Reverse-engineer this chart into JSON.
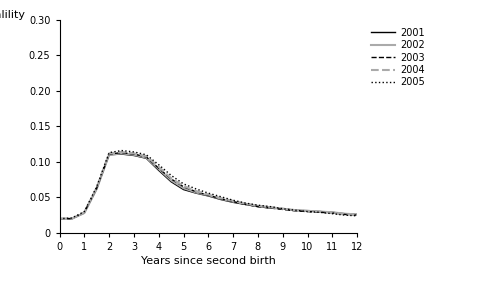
{
  "title": "",
  "xlabel": "Years since second birth",
  "xlim": [
    0,
    12
  ],
  "ylim": [
    0,
    0.3
  ],
  "yticks": [
    0,
    0.05,
    0.1,
    0.15,
    0.2,
    0.25,
    0.3
  ],
  "xticks": [
    0,
    1,
    2,
    3,
    4,
    5,
    6,
    7,
    8,
    9,
    10,
    11,
    12
  ],
  "series": [
    {
      "label": "2001",
      "color": "#000000",
      "linestyle": "solid",
      "linewidth": 1.0,
      "x": [
        0,
        0.5,
        1.0,
        1.5,
        2.0,
        2.5,
        3.0,
        3.5,
        4.0,
        4.5,
        5.0,
        5.5,
        6.0,
        6.5,
        7.0,
        7.5,
        8.0,
        8.5,
        9.0,
        9.5,
        10.0,
        10.5,
        11.0,
        11.5,
        12.0
      ],
      "y": [
        0.02,
        0.02,
        0.028,
        0.062,
        0.11,
        0.111,
        0.109,
        0.105,
        0.088,
        0.072,
        0.061,
        0.056,
        0.052,
        0.047,
        0.043,
        0.04,
        0.037,
        0.035,
        0.034,
        0.032,
        0.031,
        0.03,
        0.029,
        0.027,
        0.026
      ]
    },
    {
      "label": "2002",
      "color": "#aaaaaa",
      "linestyle": "solid",
      "linewidth": 1.5,
      "x": [
        0,
        0.5,
        1.0,
        1.5,
        2.0,
        2.5,
        3.0,
        3.5,
        4.0,
        4.5,
        5.0,
        5.5,
        6.0,
        6.5,
        7.0,
        7.5,
        8.0,
        8.5,
        9.0,
        9.5,
        10.0,
        10.5,
        11.0,
        11.5,
        12.0
      ],
      "y": [
        0.02,
        0.02,
        0.028,
        0.062,
        0.11,
        0.112,
        0.11,
        0.106,
        0.09,
        0.074,
        0.063,
        0.057,
        0.053,
        0.048,
        0.044,
        0.041,
        0.038,
        0.036,
        0.034,
        0.032,
        0.031,
        0.03,
        0.029,
        0.027,
        0.026
      ]
    },
    {
      "label": "2003",
      "color": "#000000",
      "linestyle": "dashed",
      "linewidth": 1.0,
      "x": [
        0,
        0.5,
        1.0,
        1.5,
        2.0,
        2.5,
        3.0,
        3.5,
        4.0,
        4.5,
        5.0,
        5.5,
        6.0,
        6.5,
        7.0,
        7.5,
        8.0,
        8.5,
        9.0,
        9.5,
        10.0,
        10.5,
        11.0,
        11.5,
        12.0
      ],
      "y": [
        0.02,
        0.02,
        0.029,
        0.063,
        0.111,
        0.113,
        0.111,
        0.107,
        0.091,
        0.076,
        0.065,
        0.058,
        0.053,
        0.048,
        0.044,
        0.04,
        0.037,
        0.035,
        0.033,
        0.031,
        0.03,
        0.029,
        0.028,
        0.026,
        0.025
      ]
    },
    {
      "label": "2004",
      "color": "#aaaaaa",
      "linestyle": "dashed",
      "linewidth": 1.5,
      "x": [
        0,
        0.5,
        1.0,
        1.5,
        2.0,
        2.5,
        3.0,
        3.5,
        4.0,
        4.5,
        5.0,
        5.5,
        6.0,
        6.5,
        7.0,
        7.5,
        8.0,
        8.5,
        9.0,
        9.5,
        10.0,
        10.5,
        11.0,
        11.5,
        12.0
      ],
      "y": [
        0.02,
        0.02,
        0.029,
        0.064,
        0.112,
        0.114,
        0.112,
        0.108,
        0.093,
        0.077,
        0.066,
        0.059,
        0.054,
        0.049,
        0.045,
        0.041,
        0.038,
        0.036,
        0.034,
        0.032,
        0.031,
        0.03,
        0.028,
        0.026,
        0.025
      ]
    },
    {
      "label": "2005",
      "color": "#000000",
      "linestyle": "dotted",
      "linewidth": 1.0,
      "x": [
        0,
        0.5,
        1.0,
        1.5,
        2.0,
        2.5,
        3.0,
        3.5,
        4.0,
        4.5,
        5.0,
        5.5,
        6.0,
        6.5,
        7.0,
        7.5,
        8.0,
        8.5,
        9.0,
        9.5,
        10.0,
        10.5,
        11.0,
        11.5,
        12.0
      ],
      "y": [
        0.02,
        0.021,
        0.03,
        0.065,
        0.113,
        0.116,
        0.114,
        0.11,
        0.096,
        0.081,
        0.069,
        0.062,
        0.056,
        0.051,
        0.046,
        0.042,
        0.039,
        0.037,
        0.034,
        0.032,
        0.03,
        0.029,
        0.027,
        0.025,
        0.024
      ]
    }
  ],
  "legend_loc": "upper right",
  "background_color": "#ffffff"
}
